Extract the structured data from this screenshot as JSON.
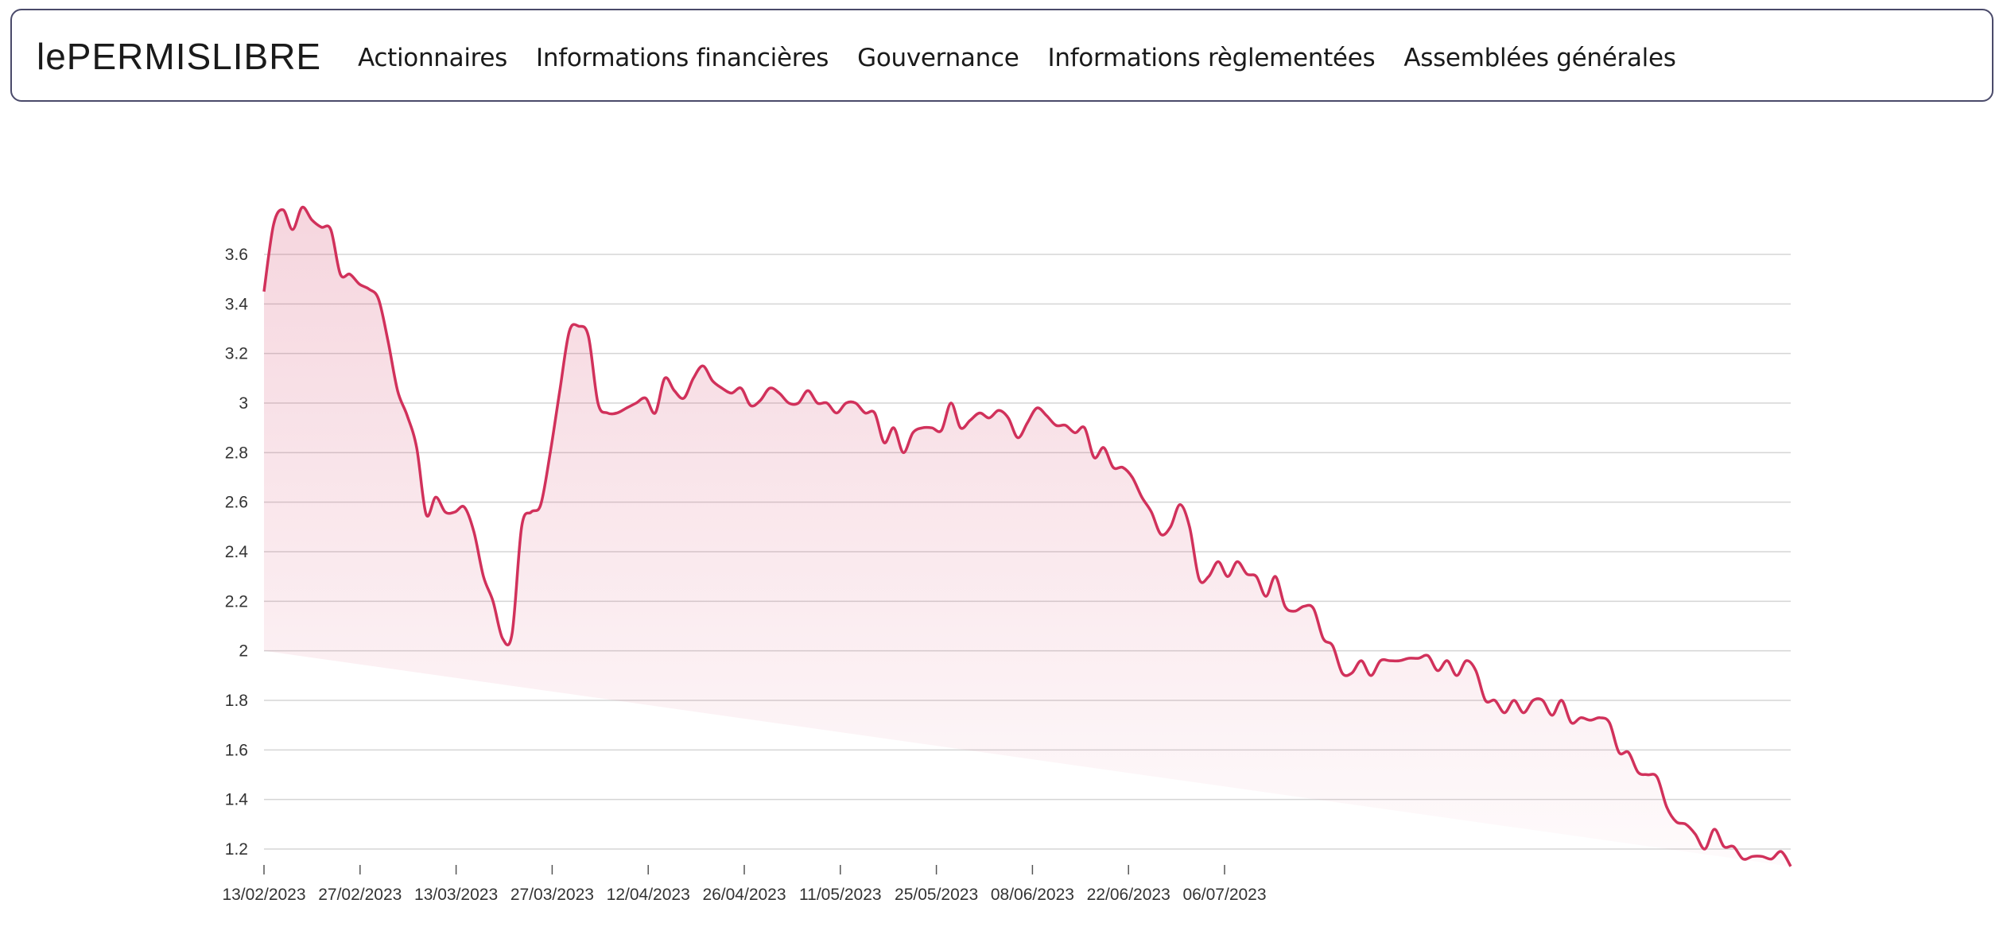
{
  "brand": {
    "logo_text": "lePERMISLIBRE"
  },
  "nav": {
    "items": [
      {
        "label": "Actionnaires"
      },
      {
        "label": "Informations financières"
      },
      {
        "label": "Gouvernance"
      },
      {
        "label": "Informations règlementées"
      },
      {
        "label": "Assemblées générales"
      }
    ]
  },
  "colors": {
    "line": "#d1315b",
    "grid": "#d5d5d5",
    "axis_text": "#333333"
  },
  "chart_data": {
    "type": "area",
    "title": "",
    "xlabel": "",
    "ylabel": "",
    "ylim": [
      1.15,
      3.85
    ],
    "grid": true,
    "yticks": [
      1.2,
      1.4,
      1.6,
      1.8,
      2,
      2.2,
      2.4,
      2.6,
      2.8,
      3,
      3.2,
      3.4,
      3.6
    ],
    "ytick_labels": [
      "1.2",
      "1.4",
      "1.6",
      "1.8",
      "2",
      "2.2",
      "2.4",
      "2.6",
      "2.8",
      "3",
      "3.2",
      "3.4",
      "3.6"
    ],
    "xticks": [
      "13/02/2023",
      "27/02/2023",
      "13/03/2023",
      "27/03/2023",
      "12/04/2023",
      "26/04/2023",
      "11/05/2023",
      "25/05/2023",
      "08/06/2023",
      "22/06/2023",
      "06/07/2023"
    ],
    "series": [
      {
        "values": [
          3.45,
          3.72,
          3.78,
          3.7,
          3.79,
          3.74,
          3.71,
          3.7,
          3.52,
          3.52,
          3.48,
          3.46,
          3.42,
          3.25,
          3.05,
          2.95,
          2.82,
          2.55,
          2.62,
          2.56,
          2.56,
          2.58,
          2.48,
          2.3,
          2.2,
          2.05,
          2.07,
          2.5,
          2.56,
          2.59,
          2.8,
          3.05,
          3.29,
          3.31,
          3.27,
          3.0,
          2.96,
          2.96,
          2.98,
          3.0,
          3.02,
          2.96,
          3.1,
          3.05,
          3.02,
          3.1,
          3.15,
          3.09,
          3.06,
          3.04,
          3.06,
          2.99,
          3.01,
          3.06,
          3.04,
          3.0,
          3.0,
          3.05,
          3.0,
          3.0,
          2.96,
          3.0,
          3.0,
          2.96,
          2.96,
          2.84,
          2.9,
          2.8,
          2.88,
          2.9,
          2.9,
          2.89,
          3.0,
          2.9,
          2.93,
          2.96,
          2.94,
          2.97,
          2.94,
          2.86,
          2.92,
          2.98,
          2.95,
          2.91,
          2.91,
          2.88,
          2.9,
          2.78,
          2.82,
          2.74,
          2.74,
          2.7,
          2.62,
          2.56,
          2.47,
          2.5,
          2.59,
          2.5,
          2.29,
          2.3,
          2.36,
          2.3,
          2.36,
          2.31,
          2.3,
          2.22,
          2.3,
          2.18,
          2.16,
          2.18,
          2.17,
          2.05,
          2.02,
          1.91,
          1.91,
          1.96,
          1.9,
          1.96,
          1.96,
          1.96,
          1.97,
          1.97,
          1.98,
          1.92,
          1.96,
          1.9,
          1.96,
          1.92,
          1.8,
          1.8,
          1.75,
          1.8,
          1.75,
          1.8,
          1.8,
          1.74,
          1.8,
          1.71,
          1.73,
          1.72,
          1.73,
          1.71,
          1.59,
          1.59,
          1.51,
          1.5,
          1.49,
          1.37,
          1.31,
          1.3,
          1.26,
          1.2,
          1.28,
          1.21,
          1.21,
          1.16,
          1.17,
          1.17,
          1.16,
          1.19,
          1.13
        ]
      }
    ]
  }
}
